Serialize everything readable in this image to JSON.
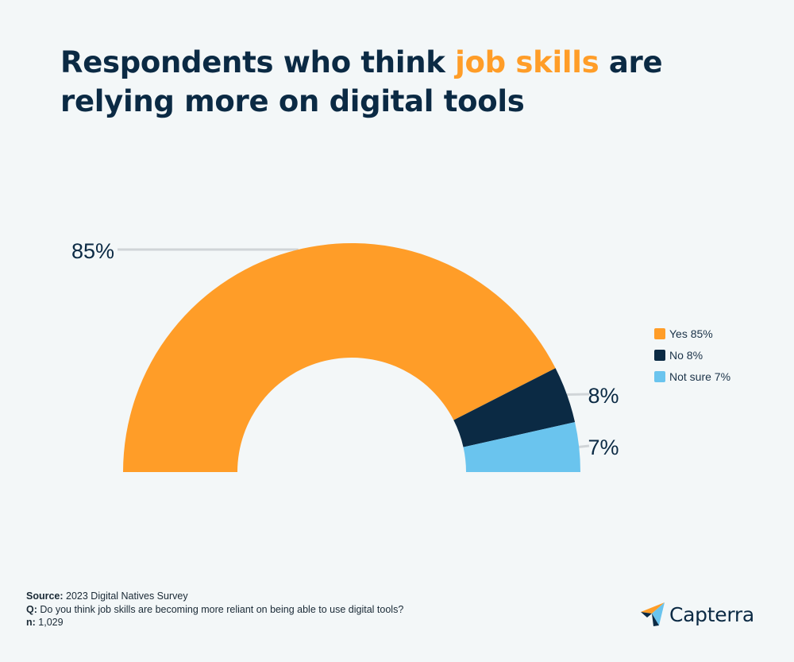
{
  "title": {
    "before": "Respondents who think ",
    "highlight": "job skills",
    "after": " are relying more on digital tools"
  },
  "chart_data": {
    "type": "pie",
    "variant": "semi-donut",
    "categories": [
      "Yes",
      "No",
      "Not sure"
    ],
    "values": [
      85,
      8,
      7
    ],
    "value_labels": [
      "85%",
      "8%",
      "7%"
    ],
    "colors": [
      "#ff9d28",
      "#0b2a44",
      "#6ac4ee"
    ],
    "legend": [
      "Yes 85%",
      "No 8%",
      "Not sure 7%"
    ],
    "legend_position": "right"
  },
  "footer": {
    "source_label": "Source:",
    "source_text": "2023 Digital Natives Survey",
    "q_label": "Q:",
    "q_text": "Do you think job skills are becoming more reliant on being able to use digital tools?",
    "n_label": "n:",
    "n_text": "1,029"
  },
  "brand": {
    "name": "Capterra",
    "logo_icon": "capterra-arrow-icon"
  }
}
